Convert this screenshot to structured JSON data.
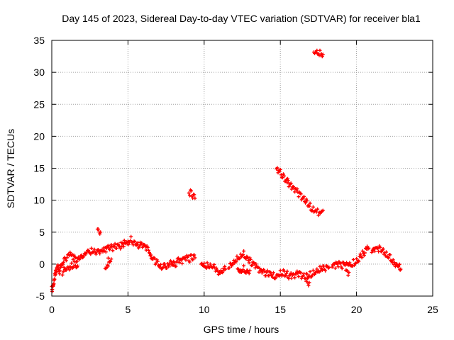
{
  "chart_data": {
    "type": "scatter",
    "title": "Day 145 of 2023, Sidereal Day-to-day VTEC variation (SDTVAR) for receiver bla1",
    "xlabel": "GPS time / hours",
    "ylabel": "SDTVAR / TECUs",
    "xlim": [
      0,
      25
    ],
    "ylim": [
      -5,
      35
    ],
    "xticks": [
      0,
      5,
      10,
      15,
      20,
      25
    ],
    "yticks": [
      -5,
      0,
      5,
      10,
      15,
      20,
      25,
      30,
      35
    ],
    "grid": true,
    "marker": "+",
    "color": "#ff0000",
    "series": [
      {
        "name": "SDTVAR",
        "segments": [
          [
            [
              0.0,
              -3.5
            ],
            [
              0.05,
              -4.0
            ],
            [
              0.1,
              -3.0
            ],
            [
              0.2,
              -2.0
            ],
            [
              0.3,
              -1.0
            ],
            [
              0.4,
              -0.5
            ],
            [
              0.5,
              -1.0
            ],
            [
              0.6,
              -0.5
            ],
            [
              0.8,
              0.5
            ],
            [
              1.0,
              1.0
            ],
            [
              1.2,
              1.5
            ],
            [
              1.4,
              1.0
            ],
            [
              1.6,
              0.5
            ],
            [
              1.8,
              1.0
            ],
            [
              2.0,
              1.2
            ],
            [
              2.2,
              1.8
            ],
            [
              2.4,
              2.2
            ],
            [
              2.6,
              2.0
            ],
            [
              2.8,
              2.2
            ],
            [
              3.0,
              2.0
            ],
            [
              3.2,
              2.0
            ],
            [
              3.4,
              2.0
            ],
            [
              3.6,
              2.2
            ],
            [
              3.8,
              2.5
            ],
            [
              4.0,
              2.5
            ],
            [
              4.2,
              2.8
            ],
            [
              4.4,
              3.0
            ],
            [
              4.6,
              2.8
            ],
            [
              4.8,
              3.5
            ],
            [
              5.0,
              3.5
            ],
            [
              5.2,
              3.8
            ],
            [
              5.4,
              3.2
            ],
            [
              5.6,
              3.0
            ],
            [
              5.8,
              3.0
            ],
            [
              6.0,
              2.8
            ],
            [
              6.2,
              2.5
            ],
            [
              6.4,
              2.0
            ],
            [
              6.6,
              1.0
            ],
            [
              6.8,
              0.5
            ],
            [
              7.0,
              0.0
            ],
            [
              7.2,
              -0.5
            ],
            [
              7.4,
              -0.3
            ],
            [
              7.6,
              0.0
            ],
            [
              7.8,
              0.3
            ],
            [
              8.0,
              0.0
            ],
            [
              8.2,
              0.3
            ],
            [
              8.4,
              0.5
            ],
            [
              8.6,
              0.6
            ],
            [
              8.8,
              0.8
            ],
            [
              9.0,
              0.7
            ],
            [
              9.2,
              1.0
            ],
            [
              9.4,
              1.0
            ]
          ],
          [
            [
              0.7,
              -1.2
            ],
            [
              0.9,
              -0.8
            ],
            [
              1.1,
              -0.5
            ],
            [
              1.3,
              -0.2
            ],
            [
              1.5,
              0.0
            ],
            [
              1.7,
              -0.3
            ]
          ],
          [
            [
              3.0,
              5.3
            ],
            [
              3.2,
              5.0
            ]
          ],
          [
            [
              3.5,
              -0.5
            ],
            [
              3.7,
              -0.3
            ]
          ],
          [
            [
              3.7,
              0.5
            ],
            [
              3.9,
              0.8
            ]
          ],
          [
            [
              9.0,
              11.3
            ],
            [
              9.2,
              10.8
            ],
            [
              9.4,
              10.3
            ]
          ],
          [
            [
              9.8,
              0.5
            ],
            [
              10.0,
              0.0
            ],
            [
              10.2,
              -0.2
            ],
            [
              10.4,
              -0.4
            ],
            [
              10.6,
              -0.5
            ],
            [
              10.8,
              -1.0
            ],
            [
              11.0,
              -1.5
            ],
            [
              11.2,
              -1.2
            ],
            [
              11.4,
              -0.8
            ]
          ],
          [
            [
              11.6,
              -0.5
            ],
            [
              11.8,
              0.0
            ],
            [
              12.0,
              0.5
            ],
            [
              12.2,
              1.0
            ],
            [
              12.4,
              1.5
            ],
            [
              12.6,
              1.5
            ],
            [
              12.8,
              1.0
            ],
            [
              13.0,
              0.5
            ],
            [
              13.2,
              0.0
            ],
            [
              13.4,
              -0.5
            ],
            [
              13.6,
              -1.0
            ],
            [
              13.8,
              -1.2
            ],
            [
              14.0,
              -1.5
            ],
            [
              14.2,
              -1.5
            ],
            [
              14.4,
              -1.5
            ],
            [
              14.6,
              -1.8
            ],
            [
              14.8,
              -1.8
            ],
            [
              15.0,
              -1.5
            ],
            [
              15.2,
              -1.2
            ],
            [
              15.4,
              -1.5
            ],
            [
              15.6,
              -1.8
            ],
            [
              15.8,
              -1.8
            ],
            [
              16.0,
              -1.8
            ],
            [
              16.2,
              -1.5
            ],
            [
              16.4,
              -1.8
            ],
            [
              16.6,
              -2.0
            ],
            [
              16.8,
              -1.8
            ],
            [
              17.0,
              -1.5
            ],
            [
              17.2,
              -1.2
            ],
            [
              17.4,
              -1.0
            ],
            [
              17.6,
              -0.8
            ],
            [
              17.8,
              -0.5
            ],
            [
              18.0,
              -0.5
            ],
            [
              18.2,
              -0.5
            ]
          ],
          [
            [
              12.2,
              -0.5
            ],
            [
              12.4,
              -1.0
            ],
            [
              12.6,
              -0.8
            ],
            [
              12.8,
              -1.2
            ],
            [
              13.0,
              -1.0
            ]
          ],
          [
            [
              16.7,
              -2.7
            ],
            [
              16.9,
              -2.9
            ]
          ],
          [
            [
              14.75,
              15.0
            ],
            [
              15.0,
              14.3
            ],
            [
              15.2,
              13.8
            ],
            [
              15.4,
              13.2
            ],
            [
              15.6,
              12.5
            ],
            [
              15.8,
              12.0
            ],
            [
              16.0,
              11.5
            ],
            [
              16.2,
              11.0
            ],
            [
              16.4,
              10.5
            ],
            [
              16.6,
              10.0
            ],
            [
              16.8,
              9.5
            ],
            [
              17.0,
              9.0
            ],
            [
              17.2,
              8.5
            ],
            [
              17.5,
              8.0
            ],
            [
              17.8,
              8.4
            ]
          ],
          [
            [
              17.2,
              33.5
            ],
            [
              17.4,
              33.2
            ],
            [
              17.6,
              33.0
            ],
            [
              17.8,
              32.8
            ]
          ],
          [
            [
              18.4,
              -0.5
            ],
            [
              18.6,
              -0.2
            ],
            [
              18.8,
              0.0
            ],
            [
              19.0,
              -0.3
            ],
            [
              19.2,
              0.0
            ],
            [
              19.4,
              0.2
            ],
            [
              19.6,
              0.0
            ],
            [
              19.8,
              0.2
            ],
            [
              20.0,
              0.5
            ],
            [
              20.2,
              1.0
            ],
            [
              20.4,
              1.5
            ],
            [
              20.6,
              2.0
            ],
            [
              20.8,
              2.5
            ]
          ],
          [
            [
              19.3,
              -1.4
            ],
            [
              19.5,
              -1.3
            ]
          ],
          [
            [
              21.0,
              2.0
            ],
            [
              21.2,
              2.5
            ],
            [
              21.4,
              2.5
            ],
            [
              21.6,
              2.2
            ],
            [
              21.8,
              2.0
            ],
            [
              22.0,
              1.5
            ],
            [
              22.2,
              1.0
            ],
            [
              22.4,
              0.5
            ],
            [
              22.6,
              0.0
            ],
            [
              22.8,
              -0.5
            ],
            [
              22.9,
              -0.8
            ]
          ]
        ]
      }
    ]
  }
}
